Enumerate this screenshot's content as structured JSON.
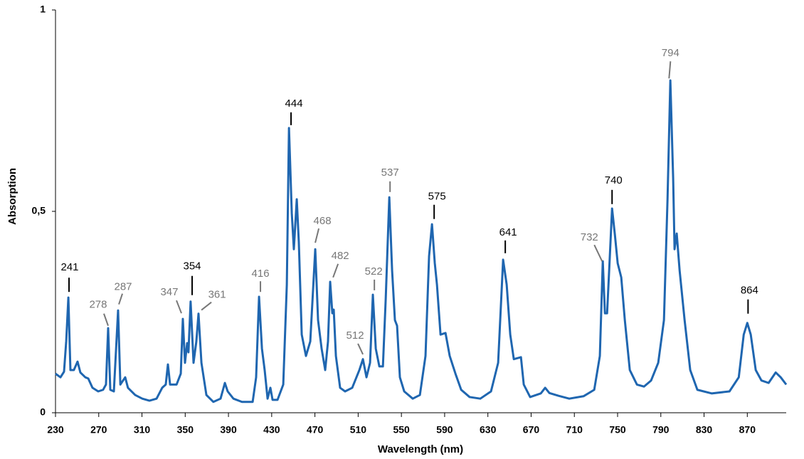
{
  "chart_data": {
    "type": "line",
    "x_label": "Wavelength (nm)",
    "y_label": "Absorption",
    "color": "#1f66b0",
    "x": [
      230,
      234.6,
      237.9,
      239.9,
      241.9,
      243.8,
      247,
      250.4,
      253,
      257.6,
      260.3,
      264.2,
      269.5,
      274,
      276.7,
      278.7,
      280.7,
      284,
      287.9,
      290,
      292.5,
      294.5,
      297,
      303.7,
      310.3,
      316.9,
      323.5,
      328.7,
      332,
      334,
      336,
      342,
      345.9,
      347.8,
      349.8,
      351.8,
      353,
      355,
      357.7,
      360.3,
      362.3,
      365,
      369.6,
      376,
      382.7,
      386.7,
      389.3,
      394.6,
      402.5,
      412.4,
      415.6,
      418.3,
      421,
      423.5,
      426.2,
      428.8,
      430.8,
      435.4,
      440.7,
      444,
      446,
      448.6,
      450.5,
      453.2,
      455.1,
      457.8,
      461.7,
      465.7,
      470.3,
      472.9,
      476.2,
      479.5,
      482.1,
      484.1,
      486.1,
      487.4,
      489.4,
      493.3,
      497.9,
      504.5,
      511.1,
      514.4,
      517.7,
      521,
      523.6,
      526.3,
      529.6,
      532.9,
      535.5,
      538.8,
      541.4,
      544,
      546,
      548.6,
      552.6,
      560.5,
      567.1,
      572.3,
      575.6,
      578.3,
      580.9,
      582.9,
      586.2,
      590.8,
      594.7,
      600,
      605.3,
      613.1,
      623,
      632.9,
      639.5,
      644.1,
      647.4,
      650.7,
      654,
      657.9,
      660.6,
      663.2,
      669.1,
      679,
      683,
      686.9,
      695.4,
      705.3,
      718.5,
      728.4,
      733.6,
      736.3,
      738.3,
      740.3,
      742.2,
      744.9,
      747.5,
      750.1,
      753.4,
      756.7,
      761.3,
      767.9,
      774.4,
      781,
      787.6,
      792.9,
      796.2,
      798.8,
      801.4,
      802.7,
      804.7,
      807.4,
      812,
      817.2,
      823.8,
      837,
      853.5,
      862.1,
      866.7,
      870,
      873.2,
      877.8,
      883.1,
      889.7,
      896.3,
      900.9,
      906
    ],
    "values": [
      0.097,
      0.088,
      0.102,
      0.177,
      0.286,
      0.106,
      0.106,
      0.127,
      0.1,
      0.088,
      0.085,
      0.062,
      0.053,
      0.057,
      0.07,
      0.21,
      0.057,
      0.053,
      0.254,
      0.07,
      0.08,
      0.088,
      0.062,
      0.044,
      0.035,
      0.03,
      0.035,
      0.062,
      0.07,
      0.12,
      0.07,
      0.07,
      0.097,
      0.233,
      0.124,
      0.173,
      0.15,
      0.276,
      0.124,
      0.177,
      0.246,
      0.124,
      0.044,
      0.027,
      0.035,
      0.074,
      0.053,
      0.035,
      0.027,
      0.027,
      0.088,
      0.288,
      0.159,
      0.106,
      0.035,
      0.062,
      0.032,
      0.032,
      0.07,
      0.318,
      0.707,
      0.495,
      0.406,
      0.53,
      0.424,
      0.194,
      0.141,
      0.177,
      0.406,
      0.23,
      0.159,
      0.106,
      0.177,
      0.325,
      0.247,
      0.256,
      0.141,
      0.062,
      0.053,
      0.062,
      0.106,
      0.133,
      0.088,
      0.124,
      0.293,
      0.159,
      0.115,
      0.115,
      0.283,
      0.535,
      0.353,
      0.23,
      0.216,
      0.088,
      0.053,
      0.035,
      0.044,
      0.141,
      0.389,
      0.468,
      0.371,
      0.318,
      0.194,
      0.198,
      0.141,
      0.097,
      0.057,
      0.039,
      0.035,
      0.053,
      0.124,
      0.38,
      0.318,
      0.194,
      0.133,
      0.136,
      0.138,
      0.07,
      0.039,
      0.048,
      0.062,
      0.049,
      0.042,
      0.035,
      0.041,
      0.057,
      0.141,
      0.376,
      0.247,
      0.247,
      0.353,
      0.507,
      0.442,
      0.371,
      0.336,
      0.23,
      0.106,
      0.07,
      0.065,
      0.08,
      0.124,
      0.23,
      0.53,
      0.825,
      0.583,
      0.406,
      0.445,
      0.353,
      0.23,
      0.106,
      0.057,
      0.048,
      0.053,
      0.088,
      0.194,
      0.223,
      0.194,
      0.106,
      0.08,
      0.074,
      0.1,
      0.088,
      0.07
    ],
    "xlim": [
      230,
      906
    ],
    "ylim": [
      0,
      1
    ],
    "xticks": [
      230,
      270,
      310,
      350,
      390,
      430,
      470,
      510,
      550,
      590,
      630,
      670,
      710,
      750,
      790,
      830,
      870
    ],
    "yticks": [
      0,
      {
        "value": 0.5,
        "label": "0,5"
      },
      1
    ],
    "annotations": [
      {
        "label": "241",
        "x": 242.5,
        "y": 0.3,
        "color": "#000000"
      },
      {
        "label": "278",
        "x": 278.7,
        "y": 0.216,
        "color": "#777777"
      },
      {
        "label": "287",
        "x": 288.6,
        "y": 0.269,
        "color": "#777777"
      },
      {
        "label": "347",
        "x": 346.5,
        "y": 0.247,
        "color": "#777777"
      },
      {
        "label": "354",
        "x": 356.4,
        "y": 0.292,
        "color": "#000000"
      },
      {
        "label": "361",
        "x": 365.0,
        "y": 0.255,
        "color": "#777777"
      },
      {
        "label": "416",
        "x": 419.6,
        "y": 0.3,
        "color": "#777777"
      },
      {
        "label": "444",
        "x": 447.9,
        "y": 0.714,
        "color": "#000000"
      },
      {
        "label": "468",
        "x": 470.3,
        "y": 0.422,
        "color": "#777777"
      },
      {
        "label": "482",
        "x": 486.8,
        "y": 0.336,
        "color": "#777777"
      },
      {
        "label": "512",
        "x": 514.4,
        "y": 0.145,
        "color": "#777777"
      },
      {
        "label": "522",
        "x": 525.0,
        "y": 0.304,
        "color": "#777777"
      },
      {
        "label": "537",
        "x": 539.5,
        "y": 0.548,
        "color": "#777777"
      },
      {
        "label": "575",
        "x": 580.3,
        "y": 0.481,
        "color": "#000000"
      },
      {
        "label": "641",
        "x": 646.1,
        "y": 0.396,
        "color": "#000000"
      },
      {
        "label": "732",
        "x": 735.7,
        "y": 0.376,
        "color": "#777777"
      },
      {
        "label": "740",
        "x": 744.9,
        "y": 0.518,
        "color": "#000000"
      },
      {
        "label": "794",
        "x": 797.6,
        "y": 0.83,
        "color": "#777777"
      },
      {
        "label": "864",
        "x": 870.7,
        "y": 0.246,
        "color": "#000000"
      }
    ]
  }
}
